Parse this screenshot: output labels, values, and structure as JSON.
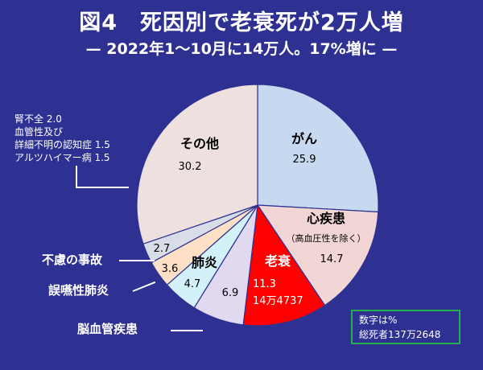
{
  "title": "図4　死因別で老衰死が2万人増",
  "subtitle": "— 2022年1〜10月に14万人。17%増に —",
  "chart_data": {
    "type": "pie",
    "unit": "%",
    "slices": [
      {
        "key": "gan",
        "label": "がん",
        "sublabel": "",
        "value": 25.9,
        "value_text": "25.9",
        "extra": "",
        "color": "#c6d9f1"
      },
      {
        "key": "shin",
        "label": "心疾患",
        "sublabel": "（高血圧性を除く）",
        "value": 14.7,
        "value_text": "14.7",
        "extra": "",
        "color": "#f2d6d6"
      },
      {
        "key": "rosui",
        "label": "老衰",
        "sublabel": "",
        "value": 11.3,
        "value_text": "11.3",
        "extra": "14万4737",
        "color": "#ff0000"
      },
      {
        "key": "noukekkan",
        "label": "脳血管疾患",
        "sublabel": "",
        "value": 6.9,
        "value_text": "6.9",
        "extra": "",
        "color": "#e0d9ef"
      },
      {
        "key": "haien",
        "label": "肺炎",
        "sublabel": "",
        "value": 4.7,
        "value_text": "4.7",
        "extra": "",
        "color": "#d3f1f9"
      },
      {
        "key": "goen",
        "label": "誤嚥性肺炎",
        "sublabel": "",
        "value": 3.6,
        "value_text": "3.6",
        "extra": "",
        "color": "#fde0c6"
      },
      {
        "key": "furyo",
        "label": "不慮の事故",
        "sublabel": "",
        "value": 2.7,
        "value_text": "2.7",
        "extra": "",
        "color": "#d9dde7"
      },
      {
        "key": "other",
        "label": "その他",
        "sublabel": "",
        "value": 30.2,
        "value_text": "30.2",
        "extra": "",
        "color": "#efe0e0"
      }
    ],
    "other_breakdown": [
      {
        "label": "腎不全",
        "value": "2.0"
      },
      {
        "label": "血管性及び",
        "value": ""
      },
      {
        "label": "詳細不明の認知症",
        "value": "1.5"
      },
      {
        "label": "アルツハイマー病",
        "value": "1.5"
      }
    ],
    "note": {
      "line1": "数字は%",
      "line2": "総死者137万2648"
    }
  }
}
